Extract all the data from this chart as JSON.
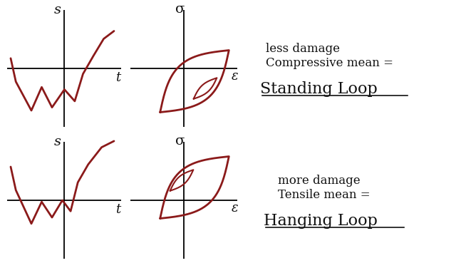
{
  "bg_color": "#ffffff",
  "dark_red": "#8B1a1a",
  "text_color": "#111111",
  "hanging_loop_label": "Hanging Loop",
  "hanging_sub1": "Tensile mean =",
  "hanging_sub2": "more damage",
  "standing_loop_label": "Standing Loop",
  "standing_sub1": "Compressive mean =",
  "standing_sub2": "less damage",
  "fig_width": 6.47,
  "fig_height": 3.76,
  "dpi": 100
}
